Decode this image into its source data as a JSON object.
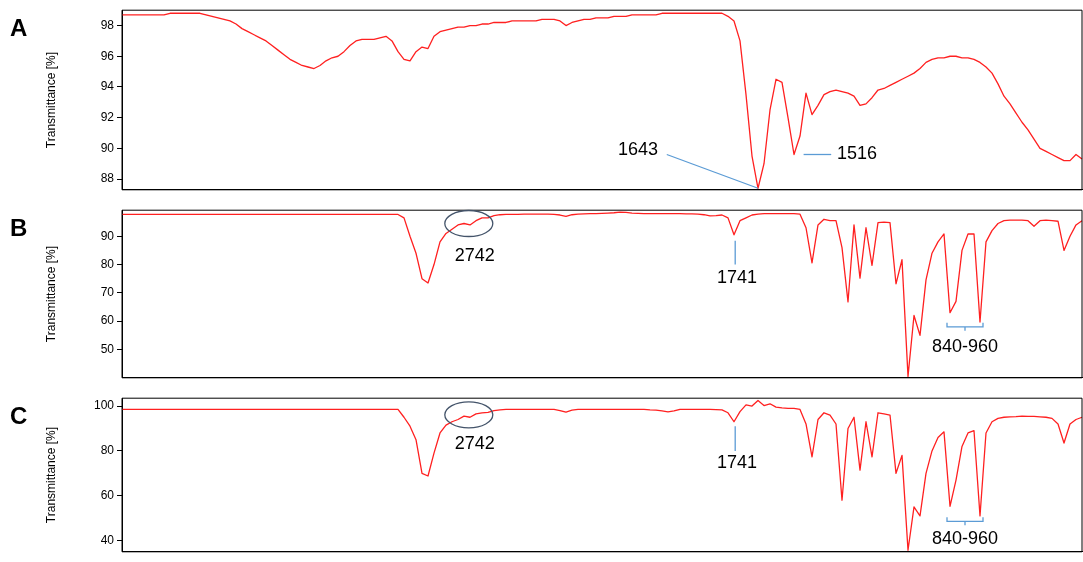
{
  "chart_data": [
    {
      "type": "line",
      "title": "A",
      "ylabel": "Transmittance [%]",
      "tick_labels": "y",
      "ylim": [
        87.3,
        99
      ],
      "yticks": [
        88,
        90,
        92,
        94,
        96,
        98
      ],
      "categories": [
        null,
        null,
        null,
        null,
        null,
        null,
        null,
        null,
        null,
        null,
        null,
        null,
        null,
        null,
        null,
        null,
        null,
        null,
        null,
        null,
        null,
        null,
        null,
        null,
        null,
        null,
        null,
        null,
        null,
        null,
        null,
        null,
        null,
        null,
        null,
        null,
        null,
        null,
        null,
        null,
        null,
        null,
        null,
        null,
        null,
        null,
        null,
        null,
        null,
        null,
        null,
        null,
        null,
        null,
        null,
        null,
        null,
        null,
        null,
        null,
        null,
        null,
        null,
        null,
        null,
        null,
        null,
        null,
        null,
        null,
        null,
        null,
        null,
        null,
        null,
        null,
        null,
        null,
        null,
        null,
        null,
        null,
        null,
        null,
        null,
        null,
        null,
        null,
        null,
        null,
        null,
        null,
        null,
        null,
        null,
        null,
        null,
        null,
        null,
        null,
        null,
        null,
        null,
        null,
        null,
        null,
        null,
        null,
        null,
        null,
        null,
        null,
        null,
        null,
        null,
        null,
        null,
        null,
        null,
        null,
        null,
        null,
        null,
        null,
        null,
        null,
        null,
        null,
        null,
        null,
        null,
        null,
        null,
        null,
        null,
        null,
        null,
        null,
        null,
        null,
        null,
        null,
        null,
        null,
        null,
        null,
        null,
        null,
        null,
        null,
        null,
        null,
        null,
        null,
        null,
        null,
        null,
        null,
        null,
        null,
        null
      ],
      "series": [
        {
          "color": "#ff2020",
          "values": [
            98.7,
            98.7,
            98.7,
            98.7,
            98.7,
            98.7,
            98.7,
            98.7,
            98.8,
            98.8,
            98.8,
            98.8,
            98.8,
            98.8,
            98.7,
            98.6,
            98.5,
            98.4,
            98.3,
            98.1,
            97.8,
            97.6,
            97.4,
            97.2,
            97.0,
            96.7,
            96.4,
            96.1,
            95.8,
            95.6,
            95.4,
            95.3,
            95.2,
            95.4,
            95.7,
            95.9,
            96.0,
            96.3,
            96.7,
            97.0,
            97.1,
            97.1,
            97.1,
            97.2,
            97.3,
            97.0,
            96.3,
            95.8,
            95.7,
            96.3,
            96.6,
            96.5,
            97.3,
            97.6,
            97.7,
            97.8,
            97.9,
            97.9,
            98.0,
            98.0,
            98.1,
            98.1,
            98.2,
            98.2,
            98.2,
            98.3,
            98.3,
            98.3,
            98.3,
            98.3,
            98.4,
            98.4,
            98.4,
            98.3,
            98.0,
            98.2,
            98.3,
            98.4,
            98.4,
            98.5,
            98.5,
            98.5,
            98.6,
            98.6,
            98.6,
            98.7,
            98.7,
            98.7,
            98.7,
            98.7,
            98.8,
            98.8,
            98.8,
            98.8,
            98.8,
            98.8,
            98.8,
            98.8,
            98.8,
            98.8,
            98.8,
            98.6,
            98.3,
            97.0,
            93.5,
            89.5,
            87.4,
            89.0,
            92.5,
            94.5,
            94.3,
            92.0,
            89.6,
            90.8,
            93.6,
            92.2,
            92.8,
            93.5,
            93.7,
            93.8,
            93.7,
            93.6,
            93.4,
            92.8,
            92.9,
            93.3,
            93.8,
            93.9,
            94.1,
            94.3,
            94.5,
            94.7,
            94.9,
            95.2,
            95.6,
            95.8,
            95.9,
            95.9,
            96.0,
            96.0,
            95.9,
            95.9,
            95.8,
            95.6,
            95.3,
            94.9,
            94.2,
            93.4,
            92.9,
            92.3,
            91.7,
            91.2,
            90.6,
            90.0,
            89.8,
            89.6,
            89.4,
            89.2,
            89.2,
            89.6,
            89.3
          ]
        }
      ],
      "annotations": [
        "1643",
        "1516"
      ]
    },
    {
      "type": "line",
      "title": "B",
      "ylabel": "Transmittance [%]",
      "tick_labels": "y",
      "ylim": [
        40,
        99.2
      ],
      "yticks": [
        50,
        60,
        70,
        80,
        90
      ],
      "categories": [
        null,
        null,
        null,
        null,
        null,
        null,
        null,
        null,
        null,
        null,
        null,
        null,
        null,
        null,
        null,
        null,
        null,
        null,
        null,
        null,
        null,
        null,
        null,
        null,
        null,
        null,
        null,
        null,
        null,
        null,
        null,
        null,
        null,
        null,
        null,
        null,
        null,
        null,
        null,
        null,
        null,
        null,
        null,
        null,
        null,
        null,
        null,
        null,
        null,
        null,
        null,
        null,
        null,
        null,
        null,
        null,
        null,
        null,
        null,
        null,
        null,
        null,
        null,
        null,
        null,
        null,
        null,
        null,
        null,
        null,
        null,
        null,
        null,
        null,
        null,
        null,
        null,
        null,
        null,
        null,
        null,
        null,
        null,
        null,
        null,
        null,
        null,
        null,
        null,
        null,
        null,
        null,
        null,
        null,
        null,
        null,
        null,
        null,
        null,
        null,
        null,
        null,
        null,
        null,
        null,
        null,
        null,
        null,
        null,
        null,
        null,
        null,
        null,
        null,
        null,
        null,
        null,
        null,
        null,
        null,
        null,
        null,
        null,
        null,
        null,
        null,
        null,
        null,
        null,
        null,
        null,
        null,
        null,
        null,
        null,
        null,
        null,
        null,
        null,
        null,
        null,
        null,
        null,
        null,
        null,
        null,
        null,
        null,
        null,
        null,
        null,
        null,
        null,
        null,
        null,
        null,
        null,
        null,
        null,
        null,
        null
      ],
      "series": [
        {
          "color": "#ff2020",
          "values": [
            97.7,
            97.7,
            97.7,
            97.7,
            97.7,
            97.7,
            97.7,
            97.7,
            97.7,
            97.7,
            97.7,
            97.7,
            97.7,
            97.7,
            97.7,
            97.7,
            97.7,
            97.7,
            97.7,
            97.7,
            97.7,
            97.7,
            97.7,
            97.7,
            97.7,
            97.7,
            97.7,
            97.7,
            97.7,
            97.7,
            97.7,
            97.7,
            97.7,
            97.7,
            97.7,
            97.7,
            97.7,
            97.7,
            97.7,
            97.7,
            97.7,
            97.7,
            97.7,
            97.7,
            97.7,
            97.7,
            97.7,
            96.5,
            90,
            84,
            75,
            73.5,
            80,
            88,
            91,
            92.5,
            94,
            94.5,
            94,
            95.5,
            96.5,
            96.5,
            97.3,
            97.6,
            97.7,
            97.7,
            97.7,
            97.8,
            97.8,
            97.8,
            97.8,
            97.8,
            97.7,
            97.5,
            97,
            97.6,
            97.8,
            97.9,
            98,
            98,
            98.1,
            98.2,
            98.3,
            98.5,
            98.4,
            98.2,
            98.1,
            98,
            98,
            98,
            98,
            98,
            98,
            98,
            97.9,
            97.9,
            97.8,
            97.6,
            97.2,
            97.3,
            97.5,
            96.5,
            90.5,
            95.5,
            96.5,
            97.5,
            97.8,
            98,
            98,
            98,
            98,
            98,
            98,
            97.8,
            93,
            80.6,
            94,
            96,
            95.5,
            95.5,
            86,
            66.8,
            94,
            75.2,
            93,
            79.7,
            94.8,
            95,
            94.8,
            73.2,
            81.7,
            40.5,
            62,
            55,
            74.6,
            84,
            88,
            90.8,
            63,
            67,
            85,
            90.8,
            90.8,
            59.7,
            88,
            92,
            94.5,
            95.5,
            95.7,
            95.7,
            95.7,
            95.5,
            93.5,
            95.5,
            95.7,
            95.5,
            95.3,
            85,
            90,
            94,
            95.5
          ]
        }
      ],
      "annotations": [
        "2742",
        "1741",
        "840-960"
      ]
    },
    {
      "type": "line",
      "title": "C",
      "ylabel": "Transmittance [%]",
      "tick_labels": "y",
      "ylim": [
        35,
        103.5
      ],
      "yticks": [
        40,
        60,
        80,
        100
      ],
      "categories": [
        null,
        null,
        null,
        null,
        null,
        null,
        null,
        null,
        null,
        null,
        null,
        null,
        null,
        null,
        null,
        null,
        null,
        null,
        null,
        null,
        null,
        null,
        null,
        null,
        null,
        null,
        null,
        null,
        null,
        null,
        null,
        null,
        null,
        null,
        null,
        null,
        null,
        null,
        null,
        null,
        null,
        null,
        null,
        null,
        null,
        null,
        null,
        null,
        null,
        null,
        null,
        null,
        null,
        null,
        null,
        null,
        null,
        null,
        null,
        null,
        null,
        null,
        null,
        null,
        null,
        null,
        null,
        null,
        null,
        null,
        null,
        null,
        null,
        null,
        null,
        null,
        null,
        null,
        null,
        null,
        null,
        null,
        null,
        null,
        null,
        null,
        null,
        null,
        null,
        null,
        null,
        null,
        null,
        null,
        null,
        null,
        null,
        null,
        null,
        null,
        null,
        null,
        null,
        null,
        null,
        null,
        null,
        null,
        null,
        null,
        null,
        null,
        null,
        null,
        null,
        null,
        null,
        null,
        null,
        null,
        null,
        null,
        null,
        null,
        null,
        null,
        null,
        null,
        null,
        null,
        null,
        null,
        null,
        null,
        null,
        null,
        null,
        null,
        null,
        null,
        null,
        null,
        null,
        null,
        null,
        null,
        null,
        null,
        null,
        null,
        null,
        null,
        null,
        null,
        null,
        null,
        null,
        null,
        null,
        null,
        null
      ],
      "series": [
        {
          "color": "#ff2020",
          "values": [
            98.5,
            98.5,
            98.5,
            98.5,
            98.5,
            98.5,
            98.5,
            98.5,
            98.5,
            98.5,
            98.5,
            98.5,
            98.5,
            98.5,
            98.5,
            98.5,
            98.5,
            98.5,
            98.5,
            98.5,
            98.5,
            98.5,
            98.5,
            98.5,
            98.5,
            98.5,
            98.5,
            98.5,
            98.5,
            98.5,
            98.5,
            98.5,
            98.5,
            98.5,
            98.5,
            98.5,
            98.5,
            98.5,
            98.5,
            98.5,
            98.5,
            98.5,
            98.5,
            98.5,
            98.5,
            98.5,
            98.5,
            95,
            91,
            85,
            70,
            68.8,
            79,
            88,
            91.5,
            93,
            94,
            95.5,
            95,
            96.5,
            97,
            97.2,
            98,
            98.3,
            98.5,
            98.5,
            98.5,
            98.5,
            98.5,
            98.5,
            98.5,
            98.5,
            98.5,
            98,
            97.3,
            98.2,
            98.5,
            98.5,
            98.5,
            98.5,
            98.5,
            98.5,
            98.5,
            98.5,
            98.5,
            98.5,
            98.5,
            98.5,
            98.3,
            98.2,
            97.8,
            97.4,
            97.8,
            98.5,
            98.5,
            98.5,
            98.5,
            98.5,
            98.5,
            98.4,
            98.3,
            97,
            93,
            97.5,
            100.5,
            100,
            102.5,
            100.2,
            101,
            99.5,
            99.2,
            99,
            99,
            98.5,
            92,
            77.3,
            94,
            97,
            96,
            92,
            58,
            90,
            95,
            71.4,
            93,
            77.3,
            97,
            96.5,
            96,
            70,
            78,
            35.7,
            55,
            51,
            70,
            80,
            86,
            88.5,
            55.3,
            67,
            82,
            88,
            89,
            51,
            88,
            93,
            94.5,
            95,
            95.2,
            95.3,
            95.5,
            95.4,
            95.4,
            95.2,
            95,
            94.5,
            92,
            83.5,
            92,
            94,
            95
          ]
        }
      ],
      "annotations": [
        "2742",
        "1741",
        "840-960"
      ]
    }
  ]
}
